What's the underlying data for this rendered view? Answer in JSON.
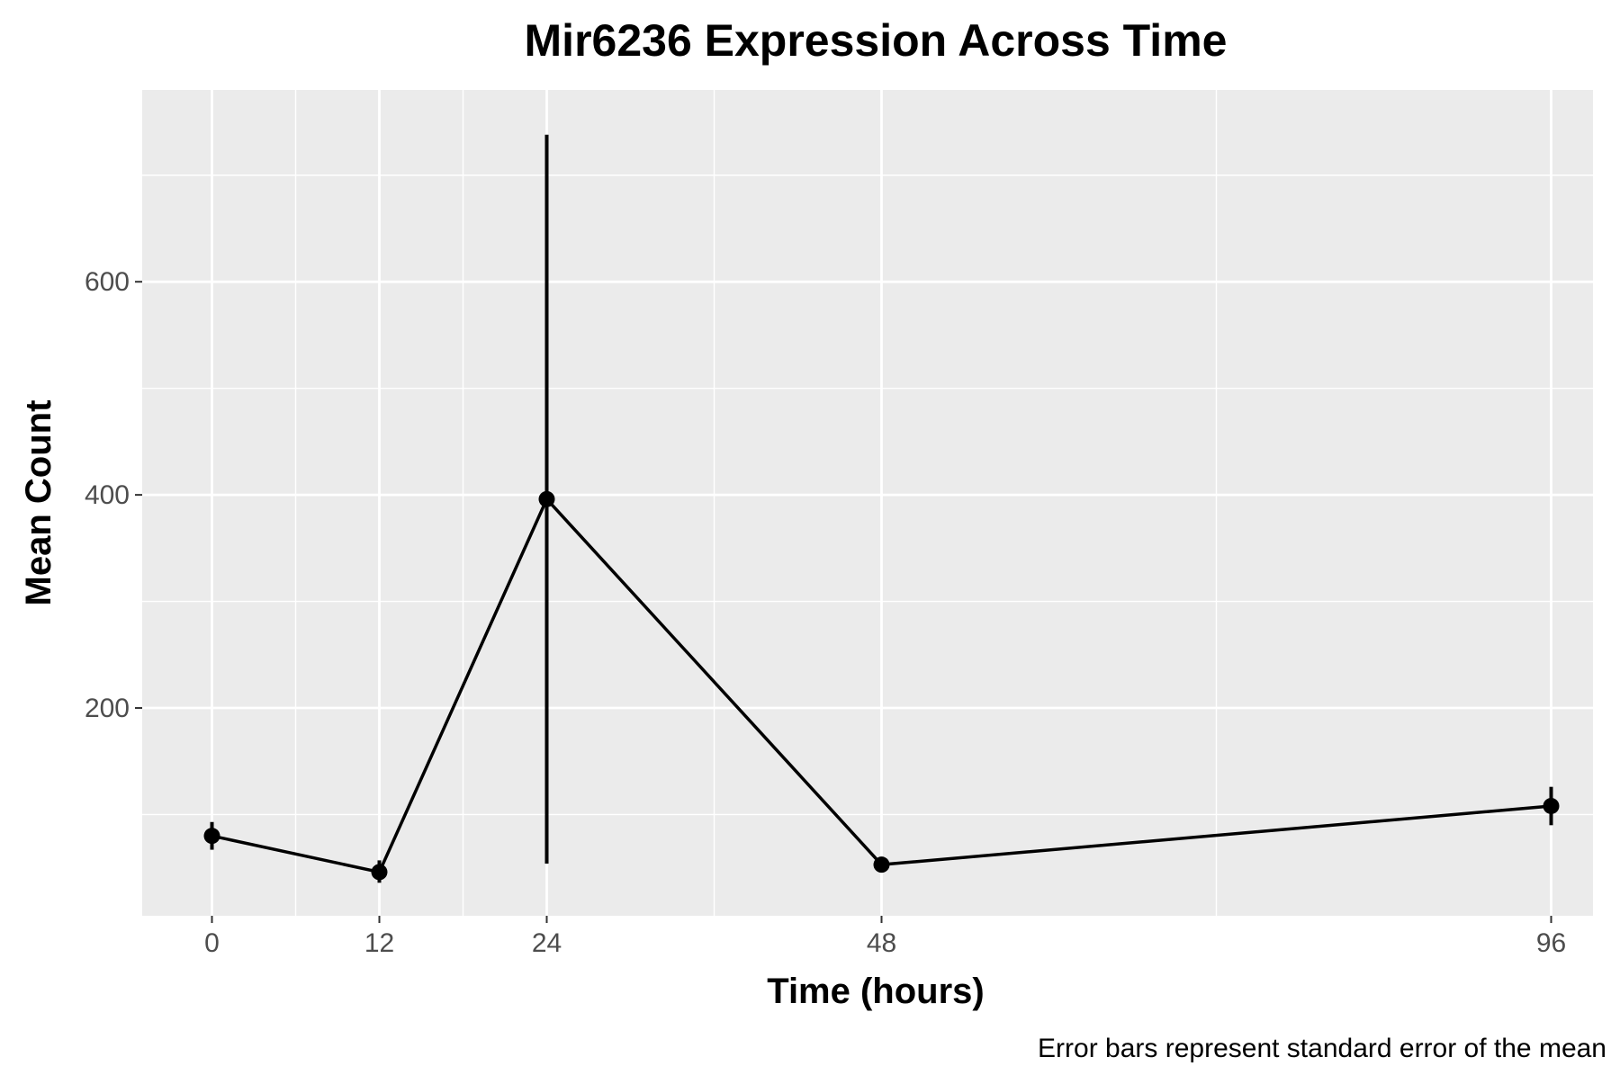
{
  "chart_data": {
    "type": "line",
    "title": "Mir6236 Expression Across Time",
    "xlabel": "Time (hours)",
    "ylabel": "Mean Count",
    "caption": "Error bars represent standard error of the mean",
    "x": [
      0,
      12,
      24,
      48,
      96
    ],
    "x_ticks": [
      "0",
      "12",
      "24",
      "48",
      "96"
    ],
    "y_ticks": [
      "200",
      "400",
      "600"
    ],
    "xlim": [
      -5,
      99
    ],
    "ylim": [
      5,
      780
    ],
    "grid": true,
    "series": [
      {
        "values": [
          80,
          46,
          396,
          53,
          108
        ],
        "error_lower": [
          67,
          36,
          54,
          49,
          90
        ],
        "error_upper": [
          93,
          57,
          738,
          57,
          126
        ],
        "color": "#000000"
      }
    ],
    "colors": {
      "panel_background": "#ebebeb",
      "grid_line": "#ffffff",
      "series": "#000000",
      "tick_text": "#4d4d4d"
    }
  }
}
